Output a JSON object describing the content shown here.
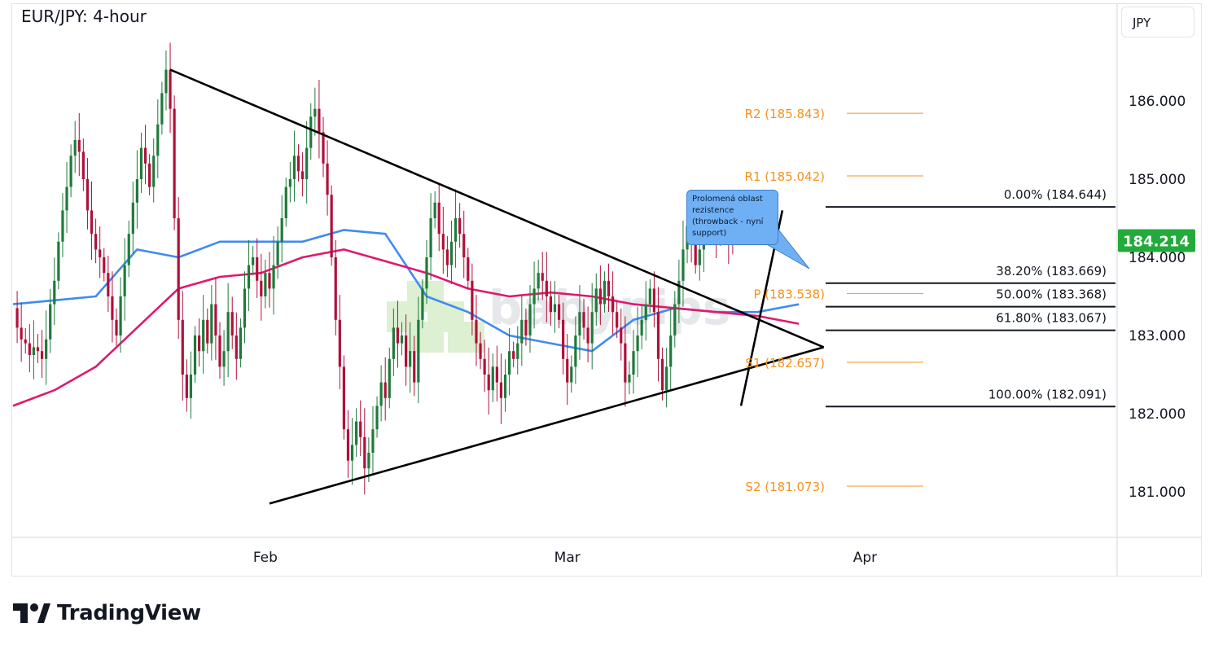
{
  "header": {
    "title": "EUR/JPY: 4-hour",
    "unit": "JPY"
  },
  "brand": {
    "name": "TradingView",
    "watermark": "babypips"
  },
  "annotation": {
    "text": "Prolomená oblast rezistence (throwback - nyní support)"
  },
  "colors": {
    "up_candle": "#1f7a3a",
    "down_candle": "#b0103a",
    "ma_fast": "#3d8bf2",
    "ma_slow": "#e0186f",
    "pivot": "#f5921e",
    "price_badge": "#22ab3a",
    "trendline": "#000000"
  },
  "chart_data": {
    "type": "candlestick",
    "title": "EUR/JPY: 4-hour",
    "ylabel": "JPY",
    "ylim": [
      180.3,
      187.2
    ],
    "y_ticks": [
      {
        "value": 186.0,
        "label": "186.000"
      },
      {
        "value": 185.0,
        "label": "185.000"
      },
      {
        "value": 184.0,
        "label": "184.000"
      },
      {
        "value": 183.0,
        "label": "183.000"
      },
      {
        "value": 182.0,
        "label": "182.000"
      },
      {
        "value": 181.0,
        "label": "181.000"
      }
    ],
    "x_ticks": [
      {
        "bar": 61,
        "label": "Feb"
      },
      {
        "bar": 134,
        "label": "Mar"
      },
      {
        "bar": 206,
        "label": "Apr"
      }
    ],
    "last_price": {
      "value": 184.214,
      "label": "184.214"
    },
    "closes": [
      183.35,
      183.1,
      182.95,
      182.9,
      182.75,
      182.85,
      182.8,
      182.7,
      182.95,
      183.4,
      183.7,
      184.2,
      184.6,
      184.9,
      185.3,
      185.5,
      185.35,
      185.0,
      184.6,
      184.3,
      184.1,
      184.0,
      183.8,
      183.5,
      183.2,
      183.0,
      183.5,
      183.9,
      184.3,
      184.7,
      185.0,
      185.4,
      185.2,
      184.9,
      185.3,
      185.7,
      186.1,
      186.4,
      185.9,
      184.5,
      183.2,
      182.5,
      182.2,
      182.5,
      183.0,
      182.8,
      183.2,
      182.9,
      183.4,
      183.0,
      182.6,
      182.8,
      183.3,
      183.0,
      182.7,
      183.1,
      183.6,
      183.9,
      184.0,
      183.7,
      183.5,
      183.8,
      183.6,
      183.9,
      184.2,
      184.5,
      184.9,
      185.0,
      185.3,
      185.1,
      185.0,
      185.4,
      185.8,
      185.9,
      185.6,
      185.2,
      184.8,
      184.0,
      183.2,
      182.6,
      181.8,
      181.4,
      181.6,
      181.9,
      181.7,
      181.3,
      181.5,
      181.8,
      182.1,
      182.4,
      182.2,
      182.7,
      183.1,
      182.9,
      183.0,
      182.6,
      182.8,
      182.4,
      183.2,
      183.6,
      184.0,
      184.5,
      184.7,
      184.3,
      184.1,
      183.9,
      184.2,
      184.5,
      184.3,
      184.0,
      183.7,
      183.2,
      182.9,
      182.7,
      182.5,
      182.3,
      182.6,
      182.4,
      182.2,
      182.5,
      182.8,
      182.7,
      182.9,
      183.2,
      183.0,
      183.4,
      183.6,
      183.8,
      183.7,
      183.5,
      183.3,
      183.4,
      183.2,
      182.7,
      182.4,
      182.6,
      183.0,
      183.3,
      183.1,
      182.9,
      183.3,
      183.6,
      183.4,
      183.7,
      183.5,
      183.3,
      183.1,
      182.9,
      182.4,
      182.5,
      182.8,
      183.0,
      183.2,
      183.4,
      183.6,
      183.3,
      182.7,
      182.3,
      182.6,
      183.0,
      183.4,
      183.7,
      184.1,
      184.4,
      184.2,
      183.9,
      184.1,
      184.4,
      184.6,
      184.4,
      184.3,
      184.5,
      184.4,
      184.25,
      184.214
    ],
    "series": [
      {
        "name": "",
        "role": "ma_fast",
        "points": [
          [
            0,
            183.4
          ],
          [
            10,
            183.45
          ],
          [
            20,
            183.5
          ],
          [
            30,
            184.1
          ],
          [
            40,
            184.0
          ],
          [
            50,
            184.2
          ],
          [
            60,
            184.2
          ],
          [
            70,
            184.2
          ],
          [
            80,
            184.35
          ],
          [
            90,
            184.3
          ],
          [
            100,
            183.5
          ],
          [
            110,
            183.3
          ],
          [
            120,
            183.0
          ],
          [
            130,
            182.9
          ],
          [
            140,
            182.8
          ],
          [
            150,
            183.2
          ],
          [
            160,
            183.35
          ],
          [
            170,
            183.3
          ],
          [
            180,
            183.3
          ],
          [
            190,
            183.4
          ]
        ]
      },
      {
        "name": "",
        "role": "ma_slow",
        "points": [
          [
            0,
            182.1
          ],
          [
            10,
            182.3
          ],
          [
            20,
            182.6
          ],
          [
            30,
            183.1
          ],
          [
            40,
            183.6
          ],
          [
            50,
            183.75
          ],
          [
            60,
            183.8
          ],
          [
            70,
            184.0
          ],
          [
            80,
            184.1
          ],
          [
            90,
            183.95
          ],
          [
            100,
            183.8
          ],
          [
            110,
            183.6
          ],
          [
            120,
            183.5
          ],
          [
            130,
            183.55
          ],
          [
            140,
            183.5
          ],
          [
            150,
            183.4
          ],
          [
            160,
            183.35
          ],
          [
            170,
            183.3
          ],
          [
            180,
            183.25
          ],
          [
            190,
            183.15
          ]
        ]
      }
    ],
    "trendlines": [
      {
        "from": [
          38,
          186.4
        ],
        "to": [
          196,
          182.85
        ]
      },
      {
        "from": [
          62,
          180.85
        ],
        "to": [
          196,
          182.85
        ]
      },
      {
        "from": [
          176,
          182.1
        ],
        "to": [
          186,
          184.6
        ]
      }
    ],
    "pivots": [
      {
        "label": "R2 (185.843)",
        "value": 185.843
      },
      {
        "label": "R1 (185.042)",
        "value": 185.042
      },
      {
        "label": "P (183.538)",
        "value": 183.538
      },
      {
        "label": "S1 (182.657)",
        "value": 182.657
      },
      {
        "label": "S2 (181.073)",
        "value": 181.073
      }
    ],
    "fibonacci": [
      {
        "label": "0.00% (184.644)",
        "value": 184.644
      },
      {
        "label": "38.20% (183.669)",
        "value": 183.669
      },
      {
        "label": "50.00% (183.368)",
        "value": 183.368
      },
      {
        "label": "61.80% (183.067)",
        "value": 183.067
      },
      {
        "label": "100.00% (182.091)",
        "value": 182.091
      }
    ]
  }
}
